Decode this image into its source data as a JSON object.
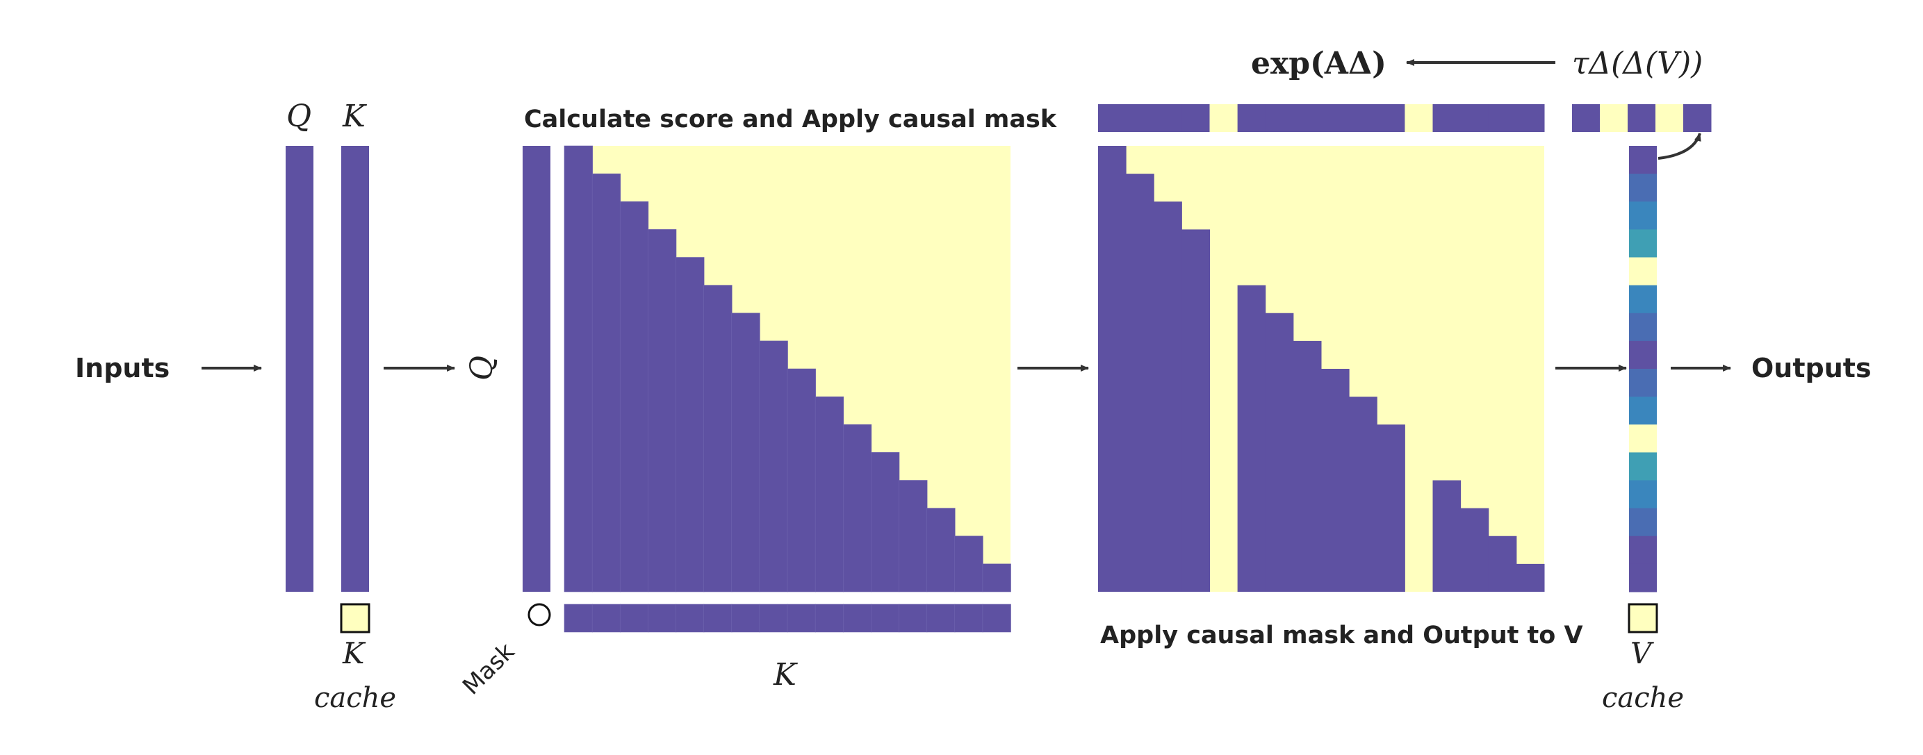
{
  "colors": {
    "purple": "#5e51a2",
    "yellow": "#ffffbf",
    "arrow": "#333333",
    "text": "#222222"
  },
  "labels": {
    "inputs": "Inputs",
    "outputs": "Outputs",
    "q_col": "Q",
    "k_col": "K",
    "q_axis": "Q",
    "k_axis": "K",
    "k_cache_symbol": "K",
    "k_cache_word": "cache",
    "v_cache_symbol": "V",
    "v_cache_word": "cache",
    "mask": "Mask",
    "score_title": "Calculate score and Apply causal mask",
    "output_title": "Apply causal mask and Output to V",
    "exp_func": "exp(AΔ)",
    "tau_func": "τΔ(Δ(V))"
  },
  "score_matrix": {
    "size": 16,
    "rule": "lower-triangular"
  },
  "output_matrix": {
    "size": 16,
    "masked_columns": [
      4,
      11
    ],
    "block_starts": [
      0,
      5,
      12
    ]
  },
  "top_strip": {
    "masked_columns": [
      4,
      11
    ]
  },
  "v_strip": {
    "cells": [
      "#5e51a2",
      "#ffffbf",
      "#5e51a2",
      "#ffffbf",
      "#5e51a2"
    ]
  },
  "v_column": {
    "cells": [
      "#5e51a2",
      "#4a6db3",
      "#3a86bd",
      "#3f9fb4",
      "#ffffbf",
      "#3a86bd",
      "#4a6db3",
      "#5e51a2",
      "#4a6db3",
      "#3a86bd",
      "#ffffbf",
      "#3f9fb4",
      "#3a86bd",
      "#4a6db3",
      "#5e51a2",
      "#5e51a2"
    ]
  }
}
